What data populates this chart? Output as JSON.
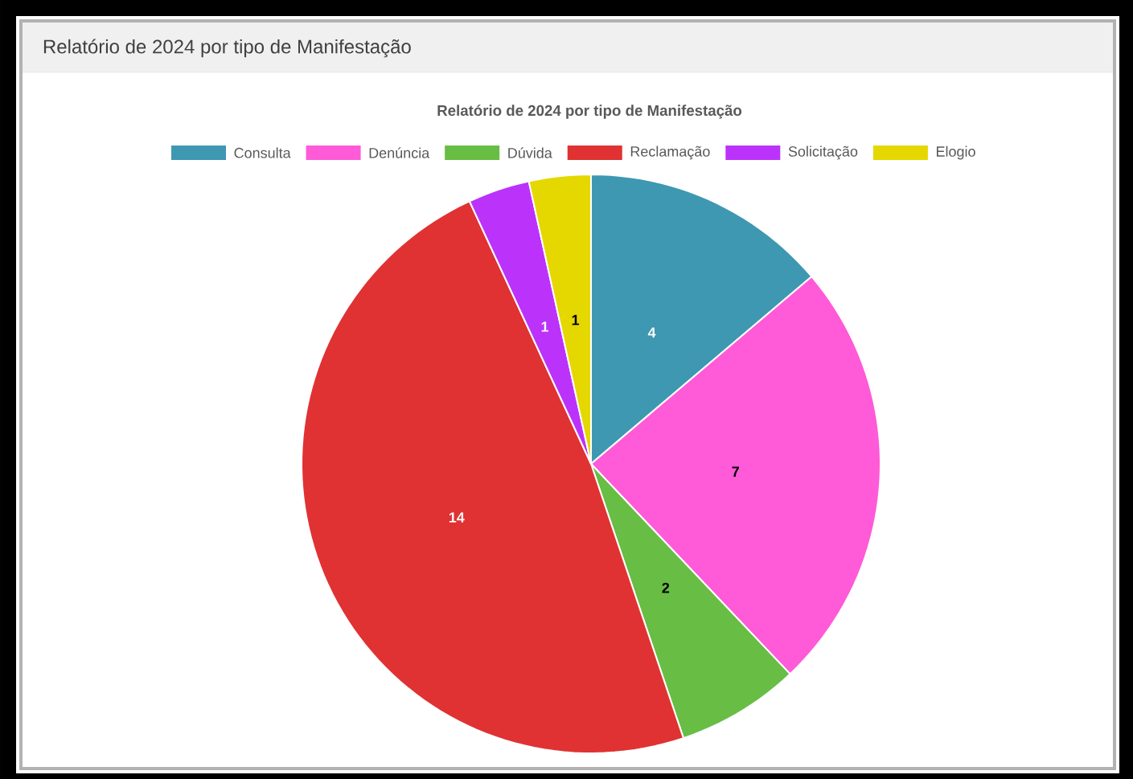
{
  "chart_data": {
    "type": "pie",
    "title": "Relatório de 2024 por tipo de Manifestação",
    "subtitle": "Relatório de 2024 por tipo de Manifestação",
    "categories": [
      "Consulta",
      "Denúncia",
      "Dúvida",
      "Reclamação",
      "Solicitação",
      "Elogio"
    ],
    "values": [
      4,
      7,
      2,
      14,
      1,
      1
    ],
    "colors": [
      "#3e98b2",
      "#ff5ad8",
      "#68bd45",
      "#e03232",
      "#bb33fa",
      "#e5d700"
    ],
    "data_labels": true,
    "legend": "top"
  }
}
